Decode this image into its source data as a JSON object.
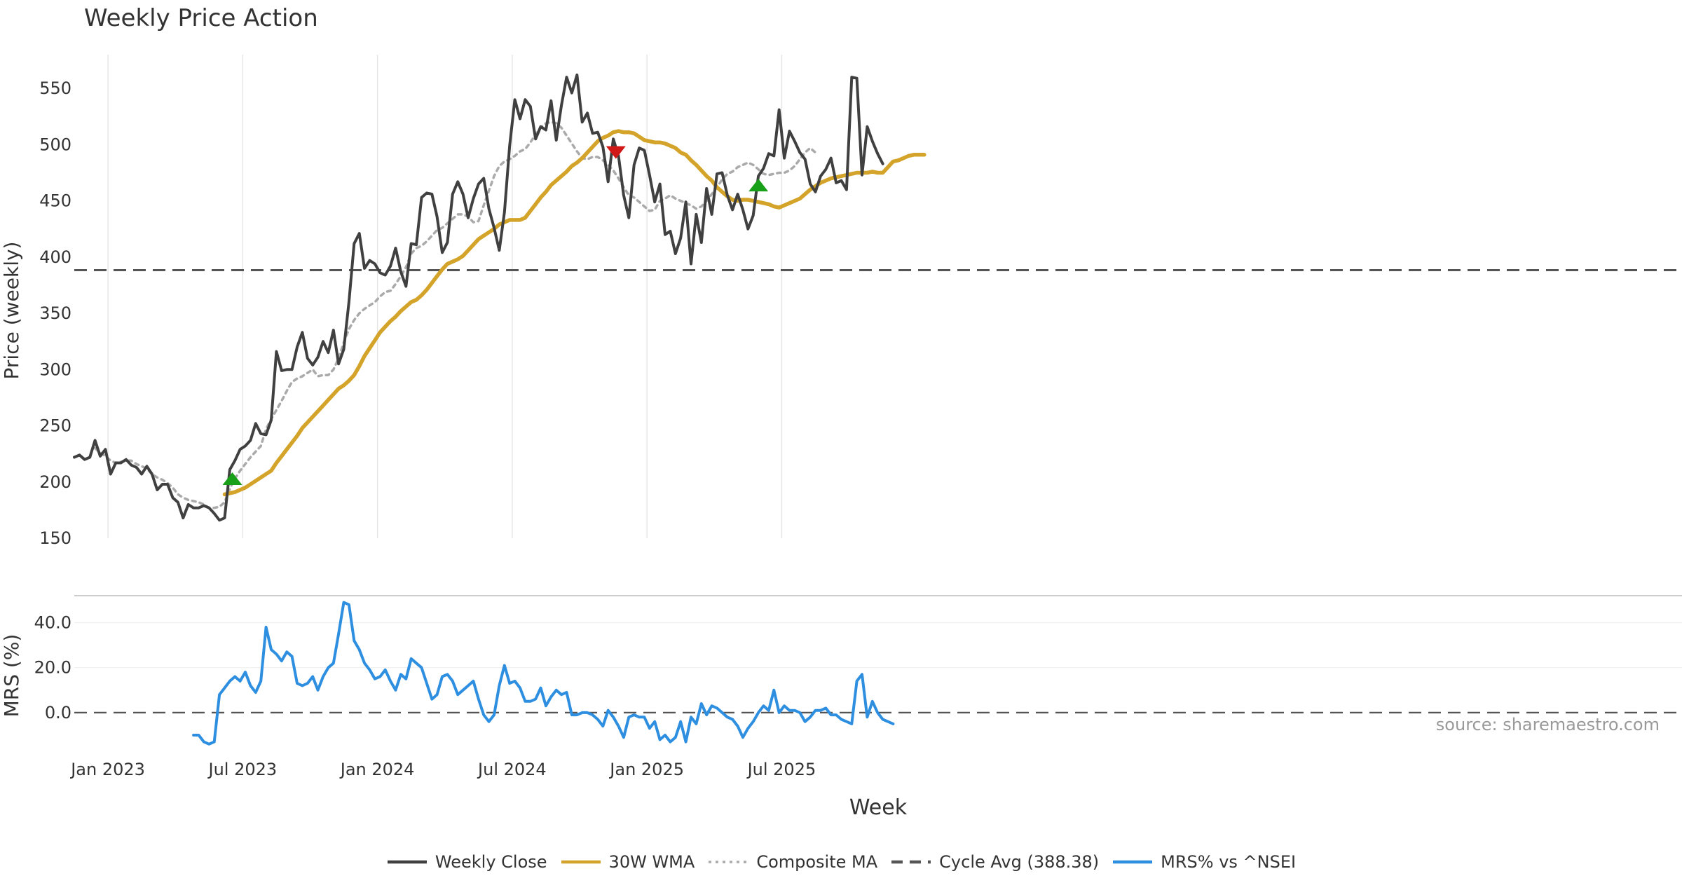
{
  "chart_data": {
    "title": "Weekly Price Action",
    "source": "source: sharemaestro.com",
    "xlabel": "Week",
    "x_ticks": [
      "Jan 2023",
      "Jul 2023",
      "Jan 2024",
      "Jul 2024",
      "Jan 2025",
      "Jul 2025"
    ],
    "price_panel": {
      "type": "line",
      "ylabel": "Price (weekly)",
      "ylim": [
        150,
        580
      ],
      "y_ticks": [
        150,
        200,
        250,
        300,
        350,
        400,
        450,
        500,
        550
      ],
      "grid": "vertical",
      "series": [
        {
          "name": "Weekly Close",
          "color": "#404040",
          "style": "solid",
          "start_week": 0,
          "values": [
            222,
            224,
            220,
            222,
            237,
            223,
            229,
            207,
            217,
            217,
            220,
            215,
            213,
            207,
            214,
            207,
            193,
            198,
            198,
            186,
            182,
            168,
            180,
            177,
            177,
            179,
            177,
            172,
            166,
            168,
            211,
            219,
            229,
            232,
            237,
            252,
            243,
            242,
            255,
            316,
            299,
            300,
            300,
            320,
            333,
            310,
            304,
            311,
            325,
            315,
            335,
            305,
            318,
            360,
            412,
            421,
            390,
            397,
            394,
            386,
            384,
            392,
            408,
            387,
            374,
            412,
            411,
            453,
            457,
            456,
            436,
            404,
            413,
            456,
            467,
            456,
            435,
            452,
            465,
            470,
            443,
            426,
            406,
            440,
            499,
            540,
            523,
            540,
            534,
            505,
            516,
            513,
            539,
            504,
            535,
            560,
            546,
            562,
            520,
            528,
            510,
            511,
            498,
            467,
            505,
            490,
            455,
            435,
            482,
            497,
            495,
            473,
            449,
            465,
            420,
            423,
            403,
            417,
            449,
            394,
            438,
            413,
            461,
            438,
            474,
            475,
            455,
            442,
            456,
            442,
            425,
            437,
            472,
            479,
            492,
            490,
            531,
            488,
            512,
            503,
            493,
            487,
            465,
            458,
            472,
            478,
            488,
            466,
            468,
            460,
            560,
            559,
            473,
            516,
            503,
            492,
            483
          ]
        },
        {
          "name": "30W WMA",
          "color": "#D4A42A",
          "style": "solid",
          "start_week": 29,
          "values": [
            189,
            190,
            191,
            193,
            195,
            198,
            201,
            204,
            207,
            210,
            217,
            223,
            229,
            235,
            241,
            248,
            253,
            258,
            263,
            268,
            273,
            278,
            283,
            286,
            290,
            295,
            303,
            312,
            319,
            326,
            333,
            338,
            343,
            347,
            352,
            356,
            360,
            362,
            366,
            371,
            377,
            383,
            389,
            394,
            396,
            398,
            401,
            406,
            411,
            416,
            419,
            422,
            425,
            429,
            431,
            433,
            433,
            433,
            435,
            441,
            447,
            453,
            458,
            464,
            468,
            472,
            476,
            481,
            484,
            488,
            493,
            498,
            503,
            506,
            508,
            511,
            512,
            511,
            511,
            510,
            507,
            504,
            503,
            502,
            502,
            501,
            499,
            497,
            493,
            491,
            486,
            482,
            477,
            472,
            468,
            462,
            458,
            454,
            451,
            450,
            451,
            451,
            450,
            449,
            448,
            447,
            445,
            444,
            446,
            448,
            450,
            452,
            456,
            460,
            463,
            466,
            468,
            470,
            471,
            472,
            473,
            474,
            475,
            475,
            475,
            476,
            475,
            475,
            480,
            485,
            486,
            488,
            490,
            491,
            491,
            491
          ]
        },
        {
          "name": "Composite MA",
          "color": "#AAAAAA",
          "style": "dotted",
          "start_week": 4,
          "values": [
            230,
            226,
            223,
            219,
            217,
            218,
            219,
            219,
            216,
            214,
            212,
            207,
            204,
            202,
            199,
            195,
            189,
            186,
            184,
            183,
            182,
            180,
            177,
            177,
            178,
            182,
            194,
            203,
            210,
            216,
            222,
            227,
            232,
            247,
            256,
            264,
            272,
            281,
            289,
            292,
            294,
            297,
            300,
            294,
            295,
            295,
            300,
            310,
            324,
            336,
            344,
            350,
            354,
            357,
            360,
            365,
            369,
            370,
            376,
            383,
            391,
            403,
            408,
            410,
            414,
            419,
            424,
            426,
            430,
            434,
            438,
            438,
            436,
            431,
            432,
            446,
            459,
            472,
            481,
            485,
            487,
            490,
            494,
            496,
            502,
            509,
            515,
            519,
            520,
            519,
            515,
            508,
            501,
            494,
            488,
            487,
            489,
            489,
            486,
            482,
            477,
            470,
            462,
            455,
            453,
            449,
            445,
            441,
            442,
            450,
            452,
            455,
            452,
            450,
            448,
            446,
            443,
            445,
            450,
            456,
            462,
            469,
            474,
            476,
            480,
            482,
            484,
            482,
            478,
            474,
            473,
            474,
            475,
            475,
            477,
            481,
            487,
            493,
            497,
            493
          ]
        },
        {
          "name": "Cycle Avg (388.38)",
          "color": "#555555",
          "style": "dashed",
          "value": 388.38
        }
      ],
      "signals": [
        {
          "type": "buy",
          "week": 30.5,
          "value": 203,
          "color": "#19A019"
        },
        {
          "type": "sell",
          "week": 104.5,
          "value": 493,
          "color": "#D01818"
        },
        {
          "type": "buy",
          "week": 132,
          "value": 464,
          "color": "#19A019"
        }
      ]
    },
    "mrs_panel": {
      "type": "line",
      "ylabel": "MRS (%)",
      "ylim": [
        -15,
        52
      ],
      "y_ticks": [
        0.0,
        20.0,
        40.0
      ],
      "zero_line": "dashed",
      "series": [
        {
          "name": "MRS% vs ^NSEI",
          "color": "#2E8FE0",
          "style": "solid",
          "start_week": 23,
          "values": [
            -10,
            -10,
            -13,
            -14,
            -13,
            8,
            11,
            14,
            16,
            14,
            18,
            12,
            9,
            14,
            38,
            28,
            26,
            23,
            27,
            25,
            13,
            12,
            13,
            16,
            10,
            16,
            20,
            22,
            35,
            49,
            48,
            32,
            28,
            22,
            19,
            15,
            16,
            19,
            14,
            10,
            17,
            15,
            24,
            22,
            20,
            13,
            6,
            8,
            16,
            17,
            14,
            8,
            10,
            12,
            14,
            6,
            -1,
            -4,
            -1,
            12,
            21,
            13,
            14,
            11,
            5,
            5,
            6,
            11,
            3,
            7,
            10,
            8,
            9,
            -1,
            -1,
            0,
            0,
            -1,
            -3,
            -6,
            1,
            -2,
            -6,
            -11,
            -2,
            -1,
            -2,
            -2,
            -7,
            -4,
            -12,
            -10,
            -13,
            -11,
            -4,
            -13,
            -2,
            -5,
            4,
            -1,
            3,
            2,
            0,
            -2,
            -3,
            -6,
            -11,
            -7,
            -4,
            0,
            3,
            1,
            10,
            0,
            3,
            1,
            1,
            0,
            -4,
            -2,
            1,
            1,
            2,
            -1,
            -1,
            -3,
            -4,
            -5,
            14,
            17,
            -2,
            5,
            0,
            -3,
            -4,
            -5
          ]
        }
      ]
    },
    "legend": {
      "placement": "bottom-center",
      "items": [
        {
          "label": "Weekly Close",
          "color": "#404040",
          "style": "solid"
        },
        {
          "label": "30W WMA",
          "color": "#D4A42A",
          "style": "solid"
        },
        {
          "label": "Composite MA",
          "color": "#AAAAAA",
          "style": "dotted"
        },
        {
          "label": "Cycle Avg (388.38)",
          "color": "#555555",
          "style": "dashed"
        },
        {
          "label": "MRS% vs ^NSEI",
          "color": "#2E8FE0",
          "style": "solid"
        }
      ]
    }
  }
}
